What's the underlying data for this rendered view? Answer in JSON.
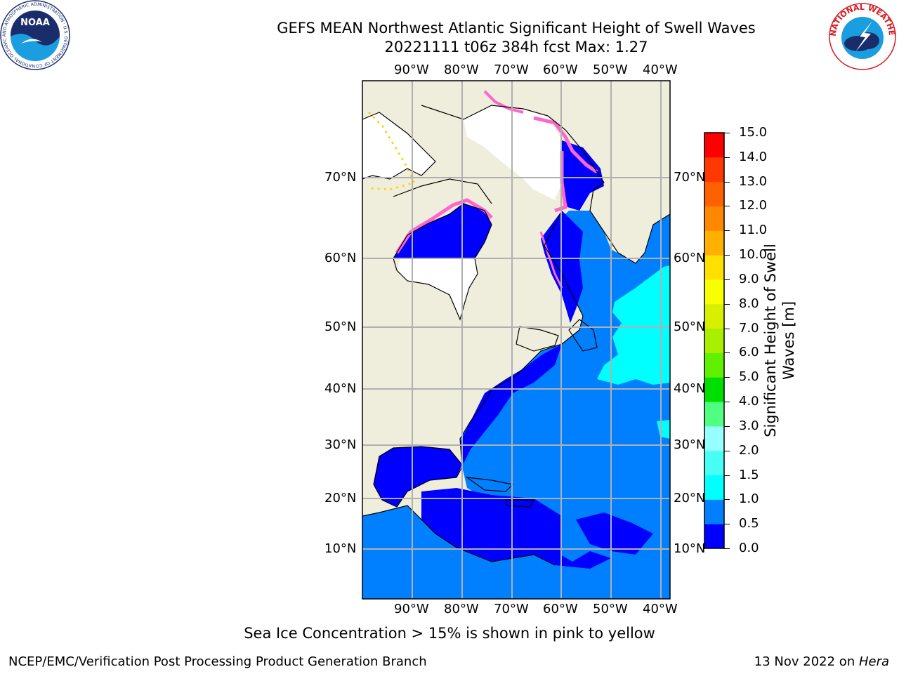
{
  "title": {
    "line1": "GEFS MEAN Northwest Atlantic Significant Height of Swell Waves",
    "line2": "20221111 t06z 384h fcst   Max: 1.27"
  },
  "map": {
    "lon_labels": [
      "90°W",
      "80°W",
      "70°W",
      "60°W",
      "50°W",
      "40°W"
    ],
    "lat_labels": [
      "70°N",
      "60°N",
      "50°N",
      "40°N",
      "30°N",
      "20°N",
      "10°N"
    ],
    "land_color": "#efeedc",
    "ocean_low_color": "#0000ff",
    "ocean_mid_color": "#0080ff",
    "ocean_high_color": "#00ffff",
    "ice_color": "#ff66cc"
  },
  "colorbar": {
    "label": "Significant Height of Swell Waves [m]",
    "label_line1": "Significant Height of Swell",
    "label_line2": "Waves [m]",
    "ticks": [
      "0.0",
      "0.5",
      "1.0",
      "1.5",
      "2.0",
      "3.0",
      "4.0",
      "5.0",
      "6.0",
      "7.0",
      "8.0",
      "9.0",
      "10.0",
      "11.0",
      "12.0",
      "13.0",
      "14.0",
      "15.0"
    ],
    "colors": [
      "#0000ff",
      "#0080ff",
      "#00ffff",
      "#48fff4",
      "#96ffff",
      "#50ff80",
      "#00e000",
      "#60f000",
      "#a8f000",
      "#d8f000",
      "#f8ff00",
      "#ffe000",
      "#ffb000",
      "#ff8800",
      "#ff6000",
      "#ff3800",
      "#ff0000"
    ]
  },
  "note": "Sea Ice Concentration > 15% is shown in pink to yellow",
  "footer": {
    "left": "NCEP/EMC/Verification Post Processing Product Generation Branch",
    "date": "13 Nov 2022 on ",
    "host": "Hera"
  },
  "logos": {
    "noaa_text": "NOAA",
    "noaa_ring": "NATIONAL OCEANIC AND ATMOSPHERIC ADMINISTRATION · U.S. DEPARTMENT OF COMMERCE",
    "nws_ring": "NATIONAL WEATHER SERVICE"
  }
}
